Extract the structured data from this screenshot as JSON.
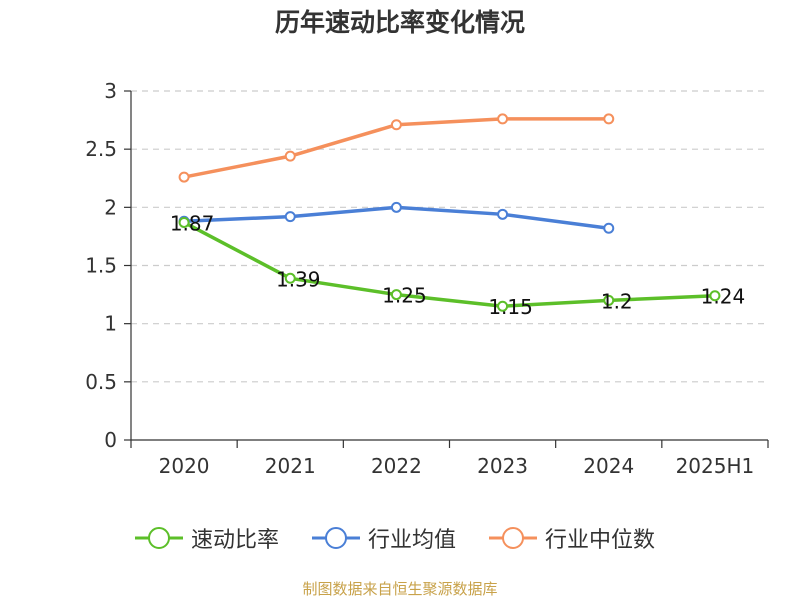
{
  "chart_data": {
    "type": "line",
    "title": "历年速动比率变化情况",
    "categories": [
      "2020",
      "2021",
      "2022",
      "2023",
      "2024",
      "2025H1"
    ],
    "ylim": [
      0,
      3
    ],
    "yticks": [
      0,
      0.5,
      1,
      1.5,
      2,
      2.5,
      3
    ],
    "ytick_labels": [
      "0",
      "0.5",
      "1",
      "1.5",
      "2",
      "2.5",
      "3"
    ],
    "grid": true,
    "legend_position": "bottom",
    "series": [
      {
        "name": "速动比率",
        "color": "#5cbf29",
        "values": [
          1.87,
          1.39,
          1.25,
          1.15,
          1.2,
          1.24
        ],
        "labels": [
          "1.87",
          "1.39",
          "1.25",
          "1.15",
          "1.2",
          "1.24"
        ]
      },
      {
        "name": "行业均值",
        "color": "#4a7fd6",
        "values": [
          1.88,
          1.92,
          2.0,
          1.94,
          1.82,
          null
        ]
      },
      {
        "name": "行业中位数",
        "color": "#f5905c",
        "values": [
          2.26,
          2.44,
          2.71,
          2.76,
          2.76,
          null
        ]
      }
    ],
    "source": "制图数据来自恒生聚源数据库"
  }
}
